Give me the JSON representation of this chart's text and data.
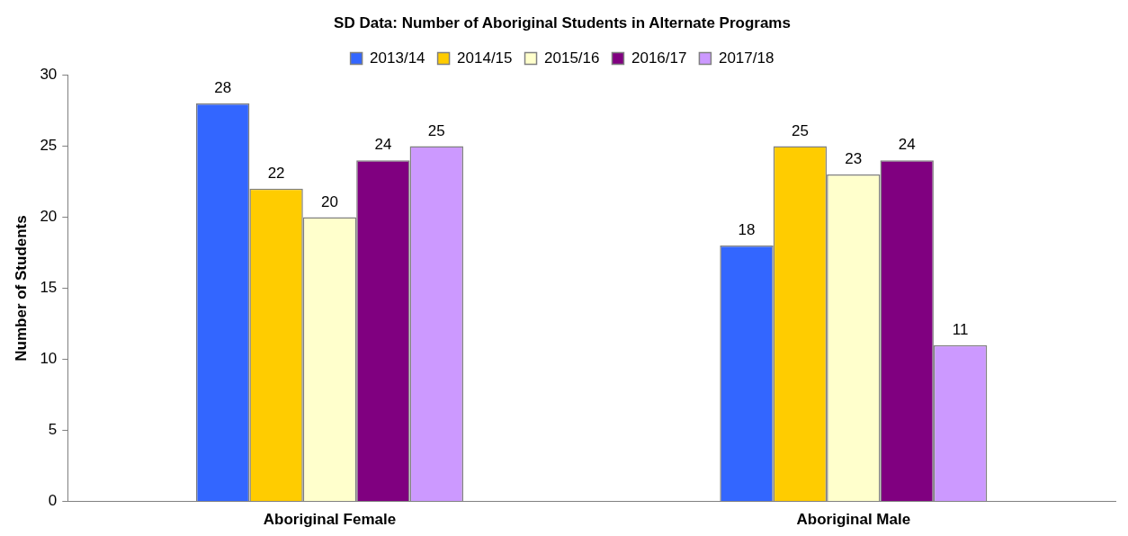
{
  "chart_data": {
    "type": "bar",
    "title": "SD Data: Number of Aboriginal Students in Alternate Programs",
    "ylabel": "Number of Students",
    "categories": [
      "Aboriginal Female",
      "Aboriginal Male"
    ],
    "series": [
      {
        "name": "2013/14",
        "color": "#3366ff",
        "values": [
          28,
          18
        ]
      },
      {
        "name": "2014/15",
        "color": "#ffcc00",
        "values": [
          22,
          25
        ]
      },
      {
        "name": "2015/16",
        "color": "#ffffcc",
        "values": [
          20,
          23
        ]
      },
      {
        "name": "2016/17",
        "color": "#800080",
        "values": [
          24,
          24
        ]
      },
      {
        "name": "2017/18",
        "color": "#cc99ff",
        "values": [
          25,
          11
        ]
      }
    ],
    "ylim": [
      0,
      30
    ],
    "yticks": [
      0,
      5,
      10,
      15,
      20,
      25,
      30
    ],
    "grid": false,
    "legend": "top",
    "data_labels": true
  }
}
